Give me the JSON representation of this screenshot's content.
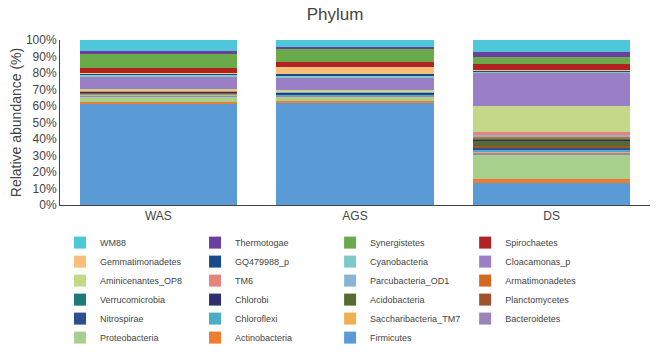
{
  "chart_data": {
    "type": "bar",
    "title": "Phylum",
    "ylabel": "Relative abundance (%)",
    "categories": [
      "WAS",
      "AGS",
      "DS"
    ],
    "stacked": true,
    "grid": false,
    "legend": "bottom",
    "ylim": [
      0,
      100
    ],
    "yticks": [
      {
        "value": 0,
        "label": "0%"
      },
      {
        "value": 10,
        "label": "10%"
      },
      {
        "value": 20,
        "label": "20%"
      },
      {
        "value": 30,
        "label": "30%"
      },
      {
        "value": 40,
        "label": "40%"
      },
      {
        "value": 50,
        "label": "50%"
      },
      {
        "value": 60,
        "label": "60%"
      },
      {
        "value": 70,
        "label": "70%"
      },
      {
        "value": 80,
        "label": "80%"
      },
      {
        "value": 90,
        "label": "90%"
      },
      {
        "value": 100,
        "label": "100%"
      }
    ],
    "series": [
      {
        "name": "Firmicutes",
        "color": "#5b9bd5",
        "values": [
          61.0,
          62.0,
          13.5
        ]
      },
      {
        "name": "Actinobacteria",
        "color": "#ed7d31",
        "values": [
          1.5,
          1.0,
          2.0
        ]
      },
      {
        "name": "Proteobacteria",
        "color": "#a8d08d",
        "values": [
          3.0,
          2.5,
          15.0
        ]
      },
      {
        "name": "Bacteroidetes",
        "color": "#9b84b8",
        "values": [
          1.0,
          0.8,
          1.5
        ]
      },
      {
        "name": "Saccharibacteria_TM7",
        "color": "#f0b050",
        "values": [
          0.3,
          0.2,
          0.5
        ]
      },
      {
        "name": "Chloroflexi",
        "color": "#4bacc6",
        "values": [
          0.5,
          0.5,
          1.0
        ]
      },
      {
        "name": "Nitrospirae",
        "color": "#2e4e8e",
        "values": [
          0.5,
          0.3,
          1.5
        ]
      },
      {
        "name": "Planctomycetes",
        "color": "#a0522d",
        "values": [
          0.3,
          0.3,
          1.0
        ]
      },
      {
        "name": "Acidobacteria",
        "color": "#556b2f",
        "values": [
          0.2,
          0.2,
          3.0
        ]
      },
      {
        "name": "Chlorobi",
        "color": "#2f2f6e",
        "values": [
          0.2,
          0.2,
          0.5
        ]
      },
      {
        "name": "Verrucomicrobia",
        "color": "#1d7a75",
        "values": [
          0.2,
          0.2,
          1.0
        ]
      },
      {
        "name": "Armatimonadetes",
        "color": "#d2691e",
        "values": [
          0.1,
          0.1,
          0.5
        ]
      },
      {
        "name": "Parcubacteria_OD1",
        "color": "#8ab4d4",
        "values": [
          0.2,
          0.2,
          1.5
        ]
      },
      {
        "name": "TM6",
        "color": "#e8837a",
        "values": [
          0.3,
          0.3,
          1.5
        ]
      },
      {
        "name": "Aminicenantes_OP8",
        "color": "#c5d88a",
        "values": [
          1.0,
          1.0,
          16.0
        ]
      },
      {
        "name": "Cloacamonas_p",
        "color": "#9b7fc6",
        "values": [
          7.0,
          7.0,
          20.0
        ]
      },
      {
        "name": "Cyanobacteria",
        "color": "#7ec8c8",
        "values": [
          1.5,
          1.5,
          1.0
        ]
      },
      {
        "name": "GQ479988_p",
        "color": "#1b4a8a",
        "values": [
          1.0,
          0.8,
          0.5
        ]
      },
      {
        "name": "Gemmatimonadetes",
        "color": "#f7c07a",
        "values": [
          0.5,
          4.8,
          0.5
        ]
      },
      {
        "name": "Spirochaetes",
        "color": "#b22222",
        "values": [
          2.5,
          2.5,
          3.5
        ]
      },
      {
        "name": "Synergistetes",
        "color": "#6aaa4a",
        "values": [
          9.0,
          8.0,
          4.0
        ]
      },
      {
        "name": "Thermotogae",
        "color": "#6b3fa0",
        "values": [
          1.5,
          1.5,
          3.0
        ]
      },
      {
        "name": "WM88",
        "color": "#4ec8d8",
        "values": [
          6.7,
          4.1,
          7.5
        ]
      }
    ]
  }
}
